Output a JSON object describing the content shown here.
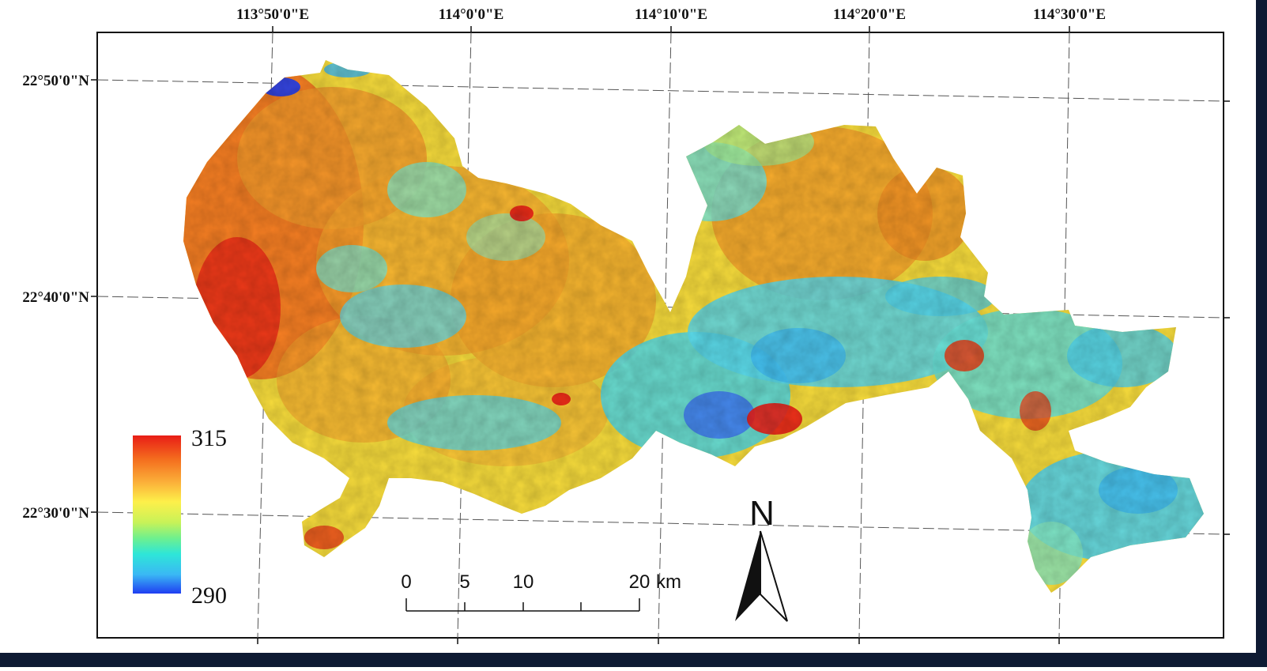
{
  "map": {
    "lon_labels": [
      "113°50'0\"E",
      "114°0'0\"E",
      "114°10'0\"E",
      "114°20'0\"E",
      "114°30'0\"E"
    ],
    "lat_labels": [
      "22°50'0\"N",
      "22°40'0\"N",
      "22°30'0\"N"
    ],
    "legend": {
      "max_label": "315",
      "min_label": "290",
      "colors": [
        "#e81d16",
        "#f46d1e",
        "#fbb23a",
        "#fdf04a",
        "#c8f258",
        "#6ef08e",
        "#2ee6d8",
        "#3ab8f4",
        "#1f3ef2"
      ]
    },
    "scale_bar": {
      "ticks": [
        "0",
        "5",
        "10",
        "20"
      ],
      "unit": "km"
    },
    "north_arrow": {
      "label": "N"
    },
    "palette": {
      "frame": "#111111",
      "graticule": "#555555",
      "hot": "#e81d16",
      "warm": "#f9a020",
      "mid": "#f3ea40",
      "cool": "#4fd8e6",
      "cold": "#1f3ef2"
    }
  }
}
